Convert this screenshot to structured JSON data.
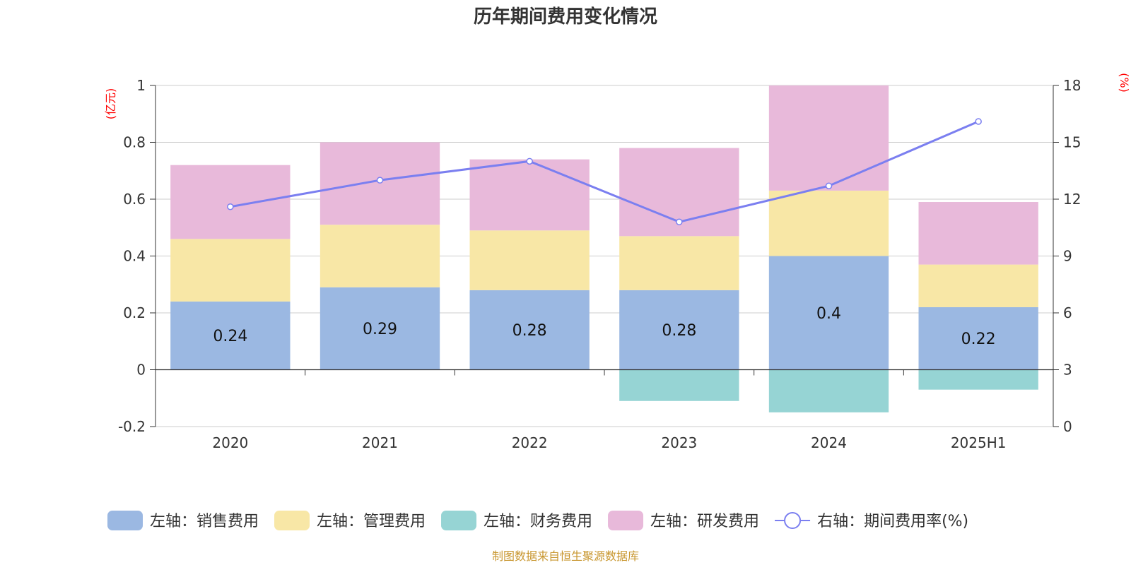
{
  "chart_data": {
    "type": "bar",
    "stacked": true,
    "title": "历年期间费用变化情况",
    "left_unit": "(亿元)",
    "right_unit": "(%)",
    "categories": [
      "2020",
      "2021",
      "2022",
      "2023",
      "2024",
      "2025H1"
    ],
    "left_axis": {
      "min": -0.2,
      "max": 1,
      "ticks": [
        "-0.2",
        "0",
        "0.2",
        "0.4",
        "0.6",
        "0.8",
        "1"
      ]
    },
    "right_axis": {
      "min": 0,
      "max": 18,
      "ticks": [
        "0",
        "3",
        "6",
        "9",
        "12",
        "15",
        "18"
      ]
    },
    "series": [
      {
        "name": "左轴：销售费用",
        "axis": "left",
        "type": "bar",
        "color": "#9bb8e2",
        "values": [
          0.24,
          0.29,
          0.28,
          0.28,
          0.4,
          0.22
        ],
        "labels": [
          "0.24",
          "0.29",
          "0.28",
          "0.28",
          "0.4",
          "0.22"
        ]
      },
      {
        "name": "左轴：管理费用",
        "axis": "left",
        "type": "bar",
        "color": "#f8e7a6",
        "values": [
          0.22,
          0.22,
          0.21,
          0.19,
          0.23,
          0.15
        ]
      },
      {
        "name": "左轴：财务费用",
        "axis": "left",
        "type": "bar",
        "color": "#96d4d4",
        "values": [
          0,
          0,
          0,
          -0.11,
          -0.15,
          -0.07
        ]
      },
      {
        "name": "左轴：研发费用",
        "axis": "left",
        "type": "bar",
        "color": "#e8b9da",
        "values": [
          0.26,
          0.29,
          0.25,
          0.31,
          0.37,
          0.22
        ]
      },
      {
        "name": "右轴：期间费用率(%)",
        "axis": "right",
        "type": "line",
        "color": "#7b7ff0",
        "values": [
          11.6,
          13.0,
          14.0,
          10.8,
          12.7,
          16.1
        ]
      }
    ],
    "legend_position": "bottom",
    "grid": true
  },
  "footer": {
    "source": "制图数据来自恒生聚源数据库"
  }
}
